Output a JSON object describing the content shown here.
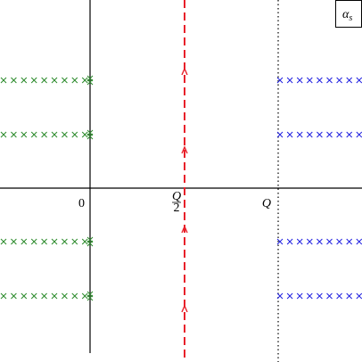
{
  "labels": {
    "coupling": "α",
    "coupling_sub": "s",
    "origin": "0",
    "half_numerator": "Q",
    "half_denominator": "2",
    "q": "Q"
  }
}
